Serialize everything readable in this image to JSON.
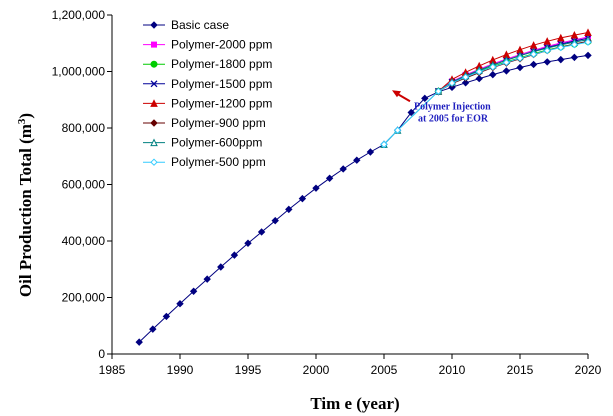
{
  "chart_data": {
    "type": "line",
    "title": "",
    "xlabel": "Tim e (year)",
    "ylabel_main": "Oil Production Total (m",
    "ylabel_sup": "3",
    "ylabel_close": ")",
    "xlim": [
      1985,
      2020
    ],
    "ylim": [
      0,
      1200000
    ],
    "xticks": [
      1985,
      1990,
      1995,
      2000,
      2005,
      2010,
      2015,
      2020
    ],
    "xtick_labels": [
      "1985",
      "1990",
      "1995",
      "2000",
      "2005",
      "2010",
      "2015",
      "2020"
    ],
    "yticks": [
      0,
      200000,
      400000,
      600000,
      800000,
      1000000,
      1200000
    ],
    "ytick_labels": [
      "0",
      "200,000",
      "400,000",
      "600,000",
      "800,000",
      "1,000,000",
      "1,200,000"
    ],
    "grid": false,
    "legend_position": "top-left",
    "annotation": {
      "line1": "Polymer Injection",
      "line2": "at 2005 for EOR",
      "color": "#1f1fbf",
      "arrow_color": "#cc0000",
      "x": 2007.5,
      "y": 930000
    },
    "series": [
      {
        "name": "Basic case",
        "color": "#000080",
        "marker": "diamond",
        "x": [
          1987,
          1988,
          1989,
          1990,
          1991,
          1992,
          1993,
          1994,
          1995,
          1996,
          1997,
          1998,
          1999,
          2000,
          2001,
          2002,
          2003,
          2004,
          2005,
          2006,
          2007,
          2008,
          2009,
          2010,
          2011,
          2012,
          2013,
          2014,
          2015,
          2016,
          2017,
          2018,
          2019,
          2020
        ],
        "y": [
          42000,
          88000,
          133000,
          178000,
          222000,
          265000,
          308000,
          350000,
          392000,
          432000,
          472000,
          512000,
          550000,
          587000,
          622000,
          655000,
          686000,
          715000,
          742000,
          792000,
          855000,
          905000,
          928000,
          944000,
          960000,
          975000,
          989000,
          1002000,
          1014000,
          1025000,
          1034000,
          1042000,
          1050000,
          1057000
        ]
      },
      {
        "name": "Polymer-2000 ppm",
        "color": "#ff00ff",
        "marker": "square",
        "x": [
          2009,
          2010,
          2011,
          2012,
          2013,
          2014,
          2015,
          2016,
          2017,
          2018,
          2019,
          2020
        ],
        "y": [
          930000,
          965000,
          988000,
          1008000,
          1027000,
          1044000,
          1060000,
          1075000,
          1089000,
          1101000,
          1112000,
          1122000
        ]
      },
      {
        "name": "Polymer-1800 ppm",
        "color": "#00cc00",
        "marker": "circle",
        "x": [
          2009,
          2010,
          2011,
          2012,
          2013,
          2014,
          2015,
          2016,
          2017,
          2018,
          2019,
          2020
        ],
        "y": [
          930000,
          960000,
          981000,
          1000000,
          1018000,
          1034000,
          1049000,
          1063000,
          1076000,
          1087000,
          1097000,
          1106000
        ]
      },
      {
        "name": "Polymer-1500 ppm",
        "color": "#000099",
        "marker": "x",
        "x": [
          2009,
          2010,
          2011,
          2012,
          2013,
          2014,
          2015,
          2016,
          2017,
          2018,
          2019,
          2020
        ],
        "y": [
          930000,
          962000,
          984000,
          1004000,
          1023000,
          1040000,
          1056000,
          1071000,
          1085000,
          1097000,
          1108000,
          1118000
        ]
      },
      {
        "name": "Polymer-1200 ppm",
        "color": "#cc0000",
        "marker": "triangle",
        "x": [
          2009,
          2010,
          2011,
          2012,
          2013,
          2014,
          2015,
          2016,
          2017,
          2018,
          2019,
          2020
        ],
        "y": [
          930000,
          972000,
          997000,
          1020000,
          1041000,
          1060000,
          1077000,
          1093000,
          1107000,
          1119000,
          1129000,
          1138000
        ]
      },
      {
        "name": "Polymer-900 ppm",
        "color": "#660000",
        "marker": "diamond",
        "x": [
          2009,
          2010,
          2011,
          2012,
          2013,
          2014,
          2015,
          2016,
          2017,
          2018,
          2019,
          2020
        ],
        "y": [
          930000,
          957000,
          977000,
          996000,
          1014000,
          1030000,
          1045000,
          1060000,
          1074000,
          1086000,
          1097000,
          1107000
        ]
      },
      {
        "name": "Polymer-600ppm",
        "color": "#008080",
        "marker": "triangle-open",
        "x": [
          2005,
          2006,
          2009,
          2010,
          2011,
          2012,
          2013,
          2014,
          2015,
          2016,
          2017,
          2018,
          2019,
          2020
        ],
        "y": [
          742000,
          792000,
          930000,
          963000,
          985000,
          1005000,
          1023000,
          1040000,
          1056000,
          1070000,
          1083000,
          1094000,
          1104000,
          1113000
        ]
      },
      {
        "name": "Polymer-500 ppm",
        "color": "#33ccff",
        "marker": "diamond-open",
        "x": [
          2005,
          2006,
          2009,
          2010,
          2011,
          2012,
          2013,
          2014,
          2015,
          2016,
          2017,
          2018,
          2019,
          2020
        ],
        "y": [
          742000,
          792000,
          930000,
          959000,
          980000,
          999000,
          1016000,
          1032000,
          1047000,
          1061000,
          1074000,
          1085000,
          1095000,
          1104000
        ]
      }
    ]
  }
}
